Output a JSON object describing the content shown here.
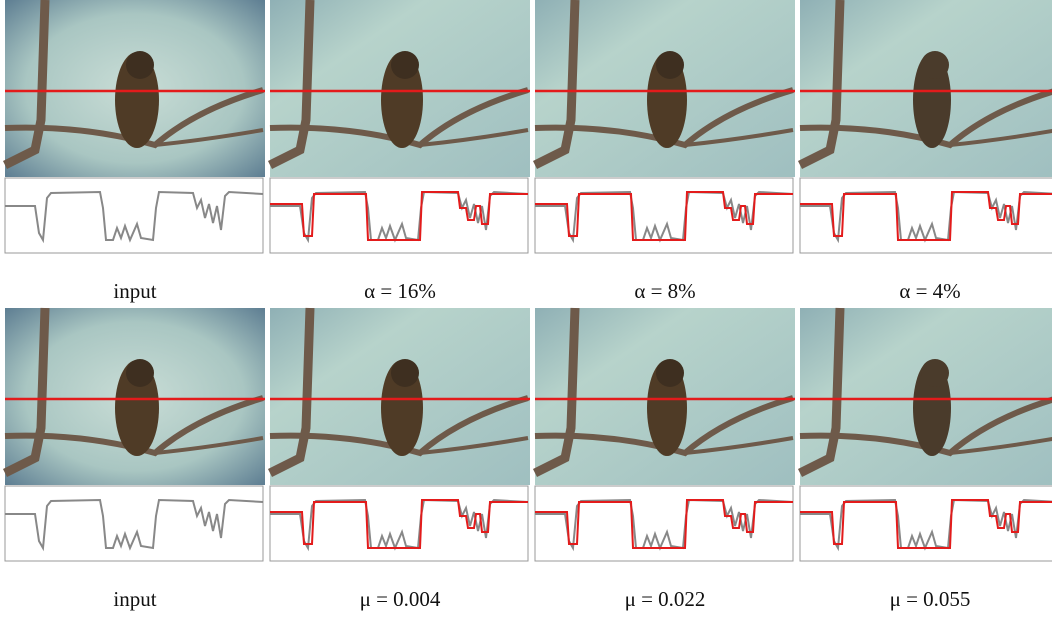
{
  "figure": {
    "rows": [
      {
        "captions": [
          "input",
          "α = 16%",
          "α = 8%",
          "α = 4%"
        ]
      },
      {
        "captions": [
          "input",
          "μ = 0.004",
          "μ = 0.022",
          "μ = 0.055"
        ]
      }
    ]
  }
}
